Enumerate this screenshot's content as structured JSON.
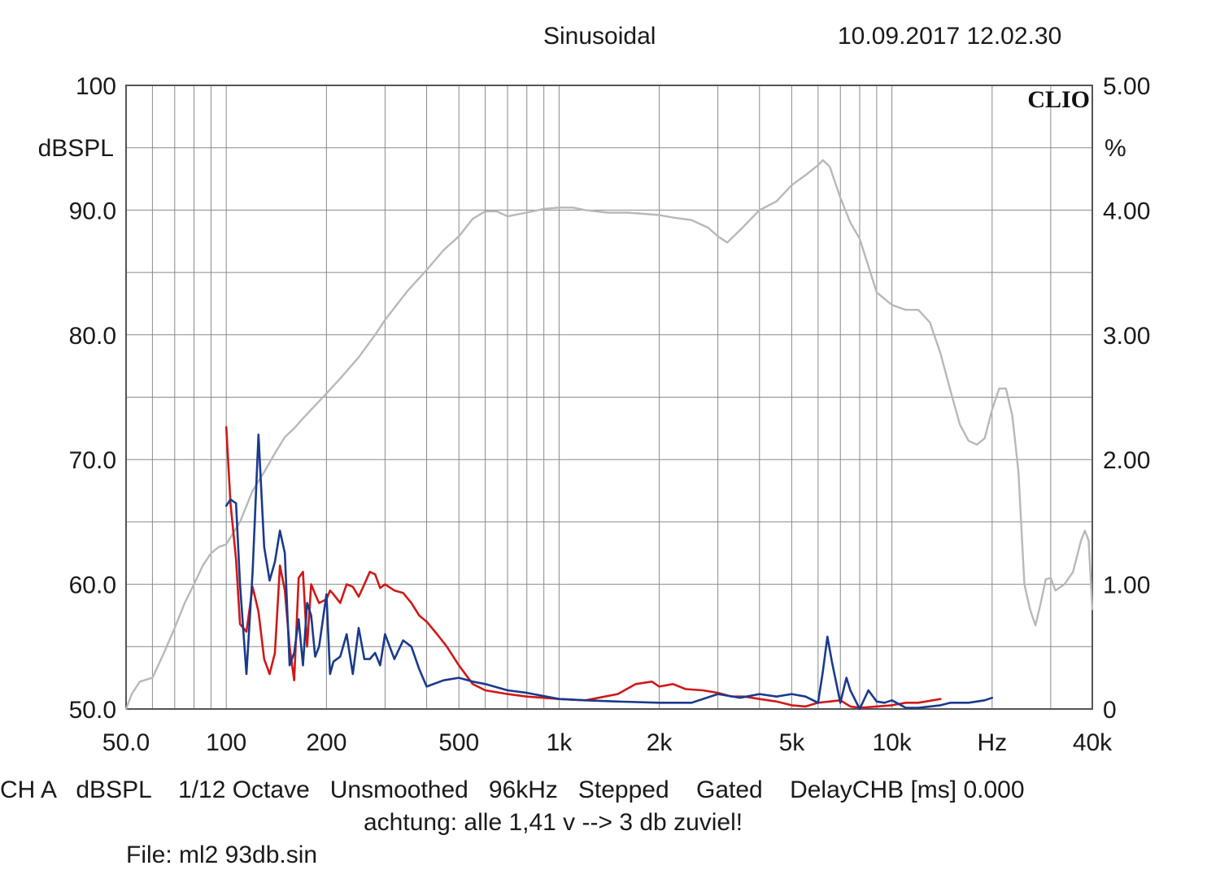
{
  "header": {
    "mode": "Sinusoidal",
    "datetime": "10.09.2017 12.02.30",
    "brand": "CLIO"
  },
  "footer": {
    "line1": "CH A   dBSPL    1/12 Octave   Unsmoothed   96kHz   Stepped    Gated    DelayCHB [ms] 0.000",
    "line2": "achtung: alle 1,41 v --> 3 db zuviel!",
    "file": "File: ml2 93db.sin"
  },
  "colors": {
    "frequency_response": "#b8b8b8",
    "distortion_red": "#d01818",
    "distortion_blue": "#1a3a8c",
    "grid": "#8a8a8a",
    "frame": "#555555"
  },
  "chart_data": {
    "type": "line",
    "x_scale": "log",
    "xlim": [
      50,
      40000
    ],
    "xticks": [
      {
        "value": 50,
        "label": "50.0"
      },
      {
        "value": 100,
        "label": "100"
      },
      {
        "value": 200,
        "label": "200"
      },
      {
        "value": 500,
        "label": "500"
      },
      {
        "value": 1000,
        "label": "1k"
      },
      {
        "value": 2000,
        "label": "2k"
      },
      {
        "value": 5000,
        "label": "5k"
      },
      {
        "value": 10000,
        "label": "10k"
      },
      {
        "value": 20000,
        "label": "Hz"
      },
      {
        "value": 40000,
        "label": "40k"
      }
    ],
    "ylabel_left": "dBSPL",
    "ylim_left": [
      50,
      100
    ],
    "yticks_left": [
      {
        "value": 100,
        "label": "100"
      },
      {
        "value": 90,
        "label": "90.0"
      },
      {
        "value": 80,
        "label": "80.0"
      },
      {
        "value": 70,
        "label": "70.0"
      },
      {
        "value": 60,
        "label": "60.0"
      },
      {
        "value": 50,
        "label": "50.0"
      }
    ],
    "ylabel_right": "%",
    "ylim_right": [
      0,
      5
    ],
    "yticks_right": [
      {
        "value": 5,
        "label": "5.00"
      },
      {
        "value": 4,
        "label": "4.00"
      },
      {
        "value": 3,
        "label": "3.00"
      },
      {
        "value": 2,
        "label": "2.00"
      },
      {
        "value": 1,
        "label": "1.00"
      },
      {
        "value": 0,
        "label": "0"
      }
    ],
    "grid": true,
    "series": [
      {
        "axis": "left",
        "color": "#b8b8b8",
        "x": [
          50,
          52,
          55,
          60,
          65,
          70,
          75,
          80,
          85,
          90,
          95,
          100,
          110,
          120,
          130,
          140,
          150,
          160,
          170,
          180,
          200,
          220,
          250,
          280,
          300,
          350,
          400,
          450,
          500,
          550,
          600,
          650,
          700,
          800,
          900,
          1000,
          1100,
          1200,
          1400,
          1600,
          1800,
          2000,
          2200,
          2500,
          2800,
          3000,
          3200,
          3500,
          4000,
          4500,
          5000,
          5500,
          6000,
          6200,
          6500,
          7000,
          7500,
          8000,
          8500,
          9000,
          10000,
          11000,
          12000,
          13000,
          14000,
          15000,
          16000,
          17000,
          18000,
          19000,
          20000,
          21000,
          22000,
          23000,
          24000,
          25000,
          26000,
          27000,
          28000,
          29000,
          30000,
          31000,
          33000,
          35000,
          37000,
          38000,
          39000,
          40000
        ],
        "values": [
          50,
          51.2,
          52.2,
          52.5,
          54.5,
          56.5,
          58.5,
          60,
          61.5,
          62.5,
          63,
          63.2,
          65,
          67.5,
          69,
          70.5,
          71.8,
          72.5,
          73.3,
          74,
          75.3,
          76.5,
          78.2,
          80,
          81.2,
          83.5,
          85.2,
          86.8,
          87.9,
          89.3,
          89.9,
          89.9,
          89.5,
          89.8,
          90.1,
          90.2,
          90.2,
          90,
          89.8,
          89.8,
          89.7,
          89.6,
          89.4,
          89.2,
          88.6,
          87.9,
          87.4,
          88.4,
          90,
          90.7,
          92,
          92.8,
          93.6,
          94,
          93.5,
          91,
          89,
          87.7,
          85.5,
          83.4,
          82.4,
          82,
          82,
          81,
          78.5,
          75.5,
          72.8,
          71.5,
          71.2,
          71.7,
          74,
          75.7,
          75.7,
          73.5,
          69,
          60,
          58,
          56.7,
          58.5,
          60.4,
          60.5,
          59.5,
          60,
          61,
          63.5,
          64.3,
          63.5,
          58
        ]
      },
      {
        "axis": "right",
        "color": "#d01818",
        "x": [
          100,
          103,
          107,
          110,
          115,
          120,
          125,
          130,
          135,
          140,
          145,
          150,
          155,
          160,
          165,
          170,
          175,
          180,
          185,
          190,
          200,
          205,
          210,
          220,
          230,
          240,
          250,
          260,
          270,
          280,
          290,
          300,
          320,
          340,
          360,
          380,
          400,
          430,
          460,
          500,
          550,
          600,
          700,
          800,
          1000,
          1200,
          1500,
          1700,
          1900,
          2000,
          2200,
          2400,
          2700,
          3000,
          3300,
          3600,
          4000,
          4500,
          5000,
          5500,
          6000,
          6500,
          7000,
          7500,
          8000,
          9000,
          10000,
          11000,
          12000,
          14000
        ],
        "values": [
          2.26,
          1.65,
          1.2,
          0.68,
          0.62,
          0.98,
          0.78,
          0.4,
          0.28,
          0.45,
          1.15,
          0.95,
          0.5,
          0.23,
          1.05,
          1.1,
          0.5,
          1.0,
          0.92,
          0.85,
          0.88,
          0.95,
          0.92,
          0.85,
          1.0,
          0.98,
          0.9,
          1.0,
          1.1,
          1.08,
          0.97,
          1.0,
          0.95,
          0.93,
          0.85,
          0.75,
          0.7,
          0.6,
          0.5,
          0.35,
          0.2,
          0.15,
          0.12,
          0.1,
          0.08,
          0.07,
          0.12,
          0.2,
          0.22,
          0.18,
          0.2,
          0.16,
          0.15,
          0.13,
          0.1,
          0.1,
          0.08,
          0.06,
          0.03,
          0.02,
          0.05,
          0.06,
          0.07,
          0.02,
          0.01,
          0.02,
          0.03,
          0.05,
          0.05,
          0.08
        ]
      },
      {
        "axis": "right",
        "color": "#1a3a8c",
        "x": [
          100,
          103,
          107,
          110,
          115,
          120,
          125,
          130,
          135,
          140,
          145,
          150,
          155,
          160,
          165,
          170,
          175,
          180,
          185,
          190,
          200,
          205,
          210,
          220,
          230,
          240,
          250,
          260,
          270,
          280,
          290,
          300,
          320,
          340,
          360,
          380,
          400,
          450,
          500,
          550,
          600,
          700,
          800,
          1000,
          1200,
          1500,
          2000,
          2500,
          3000,
          3500,
          4000,
          4500,
          5000,
          5500,
          6000,
          6200,
          6400,
          6600,
          7000,
          7300,
          7500,
          8000,
          8500,
          9000,
          9500,
          10000,
          11000,
          12000,
          13000,
          14000,
          15000,
          17000,
          19000,
          20000
        ],
        "values": [
          1.63,
          1.68,
          1.65,
          1.0,
          0.28,
          1.1,
          2.2,
          1.3,
          1.03,
          1.18,
          1.43,
          1.25,
          0.35,
          0.45,
          0.72,
          0.35,
          0.85,
          0.75,
          0.42,
          0.5,
          0.92,
          0.28,
          0.38,
          0.42,
          0.6,
          0.28,
          0.65,
          0.4,
          0.4,
          0.45,
          0.35,
          0.6,
          0.4,
          0.55,
          0.5,
          0.32,
          0.18,
          0.23,
          0.25,
          0.22,
          0.2,
          0.15,
          0.13,
          0.08,
          0.07,
          0.06,
          0.05,
          0.05,
          0.12,
          0.09,
          0.12,
          0.1,
          0.12,
          0.1,
          0.05,
          0.3,
          0.58,
          0.38,
          0.05,
          0.25,
          0.15,
          0.0,
          0.15,
          0.06,
          0.05,
          0.07,
          0.01,
          0.01,
          0.02,
          0.03,
          0.05,
          0.05,
          0.07,
          0.09
        ]
      }
    ]
  }
}
